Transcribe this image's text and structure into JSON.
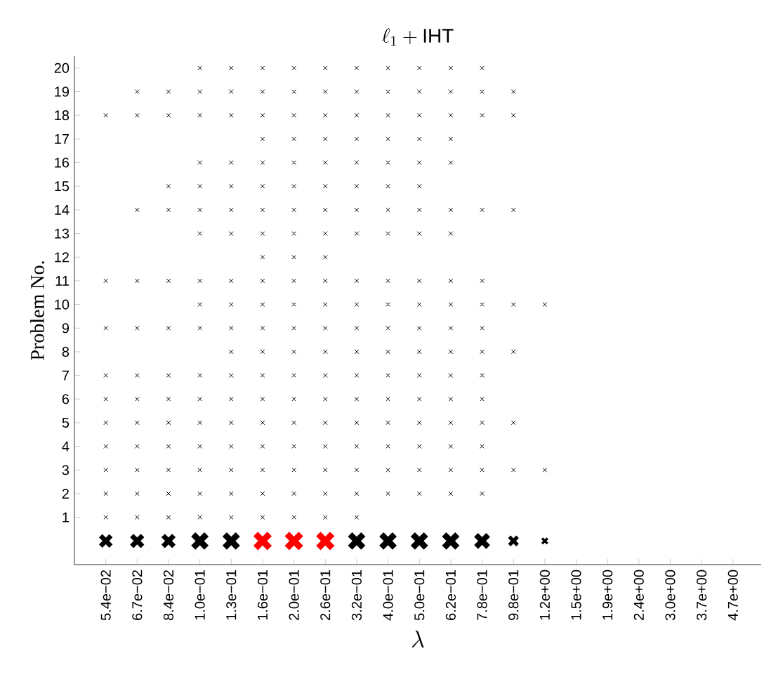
{
  "chart_data": {
    "type": "scatter",
    "title": "\\ell_1+\\mathrm{IHT}",
    "xlabel": "\\lambda",
    "ylabel": "Problem No.",
    "marker": "cross",
    "legend": false,
    "grid": false,
    "categories": [
      "5.4e−02",
      "6.7e−02",
      "8.4e−02",
      "1.0e−01",
      "1.3e−01",
      "1.6e−01",
      "2.0e−01",
      "2.6e−01",
      "3.2e−01",
      "4.0e−01",
      "5.0e−01",
      "6.2e−01",
      "7.8e−01",
      "9.8e−01",
      "1.2e+00",
      "1.5e+00",
      "1.9e+00",
      "2.4e+00",
      "3.0e+00",
      "3.7e+00",
      "4.7e+00"
    ],
    "ylim": [
      -1,
      20.5
    ],
    "yticks": [
      1,
      2,
      3,
      4,
      5,
      6,
      7,
      8,
      9,
      10,
      11,
      12,
      13,
      14,
      15,
      16,
      17,
      18,
      19,
      20
    ],
    "series": [
      {
        "color": "#000000",
        "values": [
          1,
          1,
          1,
          1,
          1,
          1,
          1,
          1,
          1,
          null,
          null,
          null,
          null,
          null,
          null,
          null,
          null,
          null,
          null,
          null,
          null
        ]
      },
      {
        "color": "#000000",
        "values": [
          2,
          2,
          2,
          2,
          2,
          2,
          2,
          2,
          2,
          2,
          2,
          2,
          2,
          null,
          null,
          null,
          null,
          null,
          null,
          null,
          null
        ]
      },
      {
        "color": "#000000",
        "values": [
          3,
          3,
          3,
          3,
          3,
          3,
          3,
          3,
          3,
          3,
          3,
          3,
          3,
          3,
          3,
          null,
          null,
          null,
          null,
          null,
          null
        ]
      },
      {
        "color": "#000000",
        "values": [
          4,
          4,
          4,
          4,
          4,
          4,
          4,
          4,
          4,
          4,
          4,
          4,
          4,
          null,
          null,
          null,
          null,
          null,
          null,
          null,
          null
        ]
      },
      {
        "color": "#000000",
        "values": [
          5,
          5,
          5,
          5,
          5,
          5,
          5,
          5,
          5,
          5,
          5,
          5,
          5,
          5,
          null,
          null,
          null,
          null,
          null,
          null,
          null
        ]
      },
      {
        "color": "#000000",
        "values": [
          6,
          6,
          6,
          6,
          6,
          6,
          6,
          6,
          6,
          6,
          6,
          6,
          6,
          null,
          null,
          null,
          null,
          null,
          null,
          null,
          null
        ]
      },
      {
        "color": "#000000",
        "values": [
          7,
          7,
          7,
          7,
          7,
          7,
          7,
          7,
          7,
          7,
          7,
          7,
          7,
          null,
          null,
          null,
          null,
          null,
          null,
          null,
          null
        ]
      },
      {
        "color": "#000000",
        "values": [
          null,
          null,
          null,
          null,
          8,
          8,
          8,
          8,
          8,
          8,
          8,
          8,
          8,
          8,
          null,
          null,
          null,
          null,
          null,
          null,
          null
        ]
      },
      {
        "color": "#000000",
        "values": [
          9,
          9,
          9,
          9,
          9,
          9,
          9,
          9,
          9,
          9,
          9,
          9,
          9,
          null,
          null,
          null,
          null,
          null,
          null,
          null,
          null
        ]
      },
      {
        "color": "#000000",
        "values": [
          null,
          null,
          null,
          10,
          10,
          10,
          10,
          10,
          10,
          10,
          10,
          10,
          10,
          10,
          10,
          null,
          null,
          null,
          null,
          null,
          null
        ]
      },
      {
        "color": "#000000",
        "values": [
          11,
          11,
          11,
          11,
          11,
          11,
          11,
          11,
          11,
          11,
          11,
          11,
          11,
          null,
          null,
          null,
          null,
          null,
          null,
          null,
          null
        ]
      },
      {
        "color": "#000000",
        "values": [
          null,
          null,
          null,
          null,
          null,
          12,
          12,
          12,
          null,
          null,
          null,
          null,
          null,
          null,
          null,
          null,
          null,
          null,
          null,
          null,
          null
        ]
      },
      {
        "color": "#000000",
        "values": [
          null,
          null,
          null,
          13,
          13,
          13,
          13,
          13,
          13,
          13,
          13,
          13,
          null,
          null,
          null,
          null,
          null,
          null,
          null,
          null,
          null
        ]
      },
      {
        "color": "#000000",
        "values": [
          null,
          14,
          14,
          14,
          14,
          14,
          14,
          14,
          14,
          14,
          14,
          14,
          14,
          14,
          null,
          null,
          null,
          null,
          null,
          null,
          null
        ]
      },
      {
        "color": "#000000",
        "values": [
          null,
          null,
          15,
          15,
          15,
          15,
          15,
          15,
          15,
          15,
          15,
          null,
          null,
          null,
          null,
          null,
          null,
          null,
          null,
          null,
          null
        ]
      },
      {
        "color": "#000000",
        "values": [
          null,
          null,
          null,
          16,
          16,
          16,
          16,
          16,
          16,
          16,
          16,
          16,
          null,
          null,
          null,
          null,
          null,
          null,
          null,
          null,
          null
        ]
      },
      {
        "color": "#000000",
        "values": [
          null,
          null,
          null,
          null,
          null,
          17,
          17,
          17,
          17,
          17,
          17,
          17,
          null,
          null,
          null,
          null,
          null,
          null,
          null,
          null,
          null
        ]
      },
      {
        "color": "#000000",
        "values": [
          18,
          18,
          18,
          18,
          18,
          18,
          18,
          18,
          18,
          18,
          18,
          18,
          18,
          18,
          null,
          null,
          null,
          null,
          null,
          null,
          null
        ]
      },
      {
        "color": "#000000",
        "values": [
          null,
          19,
          19,
          19,
          19,
          19,
          19,
          19,
          19,
          19,
          19,
          19,
          19,
          19,
          null,
          null,
          null,
          null,
          null,
          null,
          null
        ]
      },
      {
        "color": "#000000",
        "values": [
          null,
          null,
          null,
          20,
          20,
          20,
          20,
          20,
          20,
          20,
          20,
          20,
          20,
          null,
          null,
          null,
          null,
          null,
          null,
          null,
          null
        ]
      },
      {
        "type": "bubble",
        "values": [
          0,
          0,
          0,
          0,
          0,
          0,
          0,
          0,
          0,
          0,
          0,
          0,
          0,
          0,
          0,
          null,
          null,
          null,
          null,
          null,
          null
        ],
        "sizes": [
          0.55,
          0.6,
          0.6,
          0.9,
          0.9,
          1,
          1,
          1,
          0.9,
          0.9,
          0.9,
          0.9,
          0.75,
          0.35,
          0.15,
          null,
          null,
          null,
          null,
          null,
          null
        ],
        "colors": [
          "#000000",
          "#000000",
          "#000000",
          "#000000",
          "#000000",
          "#ff0000",
          "#ff0000",
          "#ff0000",
          "#000000",
          "#000000",
          "#000000",
          "#000000",
          "#000000",
          "#000000",
          "#000000",
          null,
          null,
          null,
          null,
          null,
          null
        ]
      }
    ]
  }
}
